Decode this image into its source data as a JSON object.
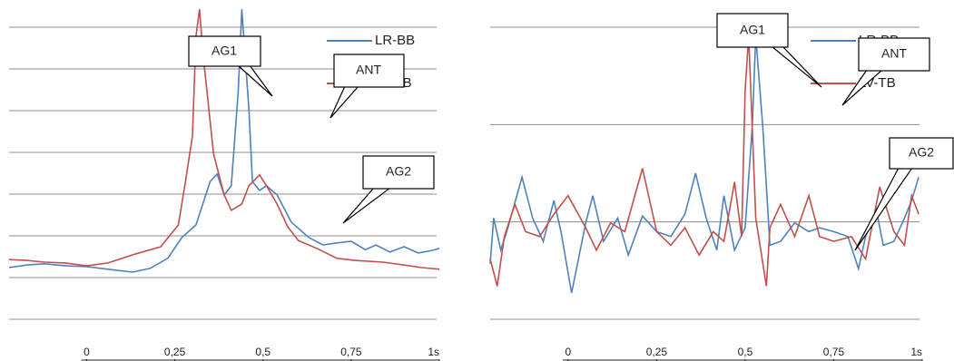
{
  "chart_data": [
    {
      "type": "line",
      "xlim": [
        -0.22,
        1
      ],
      "ylim": [
        0,
        7
      ],
      "yticks": [
        0,
        1,
        2,
        3,
        4,
        5,
        6,
        7
      ],
      "grid": true,
      "xticks": [
        0,
        {
          "value": 0.25,
          "label": "0,25"
        },
        {
          "value": 0.5,
          "label": "0,5"
        },
        {
          "value": 0.75,
          "label": "0,75"
        },
        {
          "value": 1,
          "label": "1s"
        }
      ],
      "annotations": [
        "AG1",
        "ANT",
        "AG2"
      ],
      "series": [
        {
          "name": "LR-BB",
          "color": "#4f81bd",
          "x": [
            -0.22,
            -0.17,
            -0.12,
            -0.06,
            0,
            0.06,
            0.13,
            0.18,
            0.23,
            0.27,
            0.31,
            0.35,
            0.37,
            0.39,
            0.41,
            0.43,
            0.44,
            0.46,
            0.47,
            0.49,
            0.51,
            0.54,
            0.58,
            0.63,
            0.67,
            0.71,
            0.75,
            0.79,
            0.82,
            0.86,
            0.9,
            0.94,
            0.98,
            1.0
          ],
          "values": [
            1.24,
            1.3,
            1.33,
            1.28,
            1.26,
            1.2,
            1.13,
            1.22,
            1.46,
            1.96,
            2.26,
            3.3,
            3.48,
            2.98,
            3.2,
            5.48,
            7.43,
            5.04,
            3.3,
            3.09,
            3.2,
            2.98,
            2.33,
            1.96,
            1.78,
            1.83,
            1.87,
            1.67,
            1.78,
            1.61,
            1.74,
            1.59,
            1.65,
            1.7
          ]
        },
        {
          "name": "LV-TB",
          "color": "#c0504d",
          "x": [
            -0.22,
            -0.17,
            -0.12,
            -0.06,
            0,
            0.06,
            0.14,
            0.21,
            0.26,
            0.28,
            0.3,
            0.31,
            0.32,
            0.33,
            0.36,
            0.39,
            0.41,
            0.44,
            0.46,
            0.49,
            0.51,
            0.54,
            0.57,
            0.6,
            0.66,
            0.71,
            0.76,
            0.84,
            0.9,
            0.95,
            1.0
          ],
          "values": [
            1.43,
            1.41,
            1.37,
            1.35,
            1.28,
            1.35,
            1.57,
            1.74,
            2.26,
            3.3,
            4.39,
            6.78,
            7.43,
            6.35,
            3.96,
            2.98,
            2.61,
            2.76,
            3.2,
            3.46,
            3.2,
            2.76,
            2.22,
            1.89,
            1.67,
            1.46,
            1.41,
            1.37,
            1.3,
            1.24,
            1.2
          ]
        }
      ]
    },
    {
      "type": "line",
      "xlim": [
        -0.22,
        1
      ],
      "ylim": [
        -1,
        2
      ],
      "yticks": [
        -1,
        0,
        1,
        2
      ],
      "grid": true,
      "xticks": [
        0,
        {
          "value": 0.25,
          "label": "0,25"
        },
        {
          "value": 0.5,
          "label": "0,5"
        },
        {
          "value": 0.75,
          "label": "0,75"
        },
        {
          "value": 1,
          "label": "1s"
        }
      ],
      "annotations": [
        "AG1",
        "ANT",
        "AG2"
      ],
      "series": [
        {
          "name": "LR-BB",
          "color": "#4f81bd",
          "x": [
            -0.22,
            -0.21,
            -0.19,
            -0.17,
            -0.13,
            -0.1,
            -0.07,
            -0.04,
            -0.02,
            0.01,
            0.05,
            0.07,
            0.1,
            0.14,
            0.17,
            0.21,
            0.25,
            0.29,
            0.33,
            0.36,
            0.39,
            0.42,
            0.44,
            0.47,
            0.5,
            0.52,
            0.53,
            0.55,
            0.57,
            0.6,
            0.64,
            0.68,
            0.71,
            0.75,
            0.79,
            0.82,
            0.84,
            0.87,
            0.89,
            0.92,
            0.95,
            0.97,
            0.99
          ],
          "values": [
            -0.43,
            0.04,
            -0.29,
            -0.06,
            0.46,
            0.04,
            -0.2,
            0.22,
            -0.1,
            -0.73,
            -0.01,
            0.27,
            -0.2,
            0.04,
            -0.34,
            0.06,
            -0.1,
            -0.15,
            0.08,
            0.5,
            0.04,
            -0.29,
            0.27,
            -0.29,
            -0.06,
            0.97,
            1.91,
            0.97,
            -0.24,
            -0.2,
            -0.01,
            -0.1,
            -0.06,
            -0.1,
            -0.15,
            -0.48,
            -0.15,
            0.13,
            -0.24,
            -0.2,
            0.04,
            0.22,
            0.46
          ]
        },
        {
          "name": "LV-TB",
          "color": "#c0504d",
          "x": [
            -0.22,
            -0.2,
            -0.18,
            -0.15,
            -0.12,
            -0.08,
            -0.04,
            0,
            0.05,
            0.08,
            0.12,
            0.16,
            0.21,
            0.25,
            0.29,
            0.33,
            0.37,
            0.41,
            0.44,
            0.47,
            0.49,
            0.5,
            0.51,
            0.53,
            0.56,
            0.57,
            0.6,
            0.64,
            0.68,
            0.71,
            0.75,
            0.8,
            0.84,
            0.88,
            0.92,
            0.95,
            0.97,
            0.99
          ],
          "values": [
            -0.38,
            -0.66,
            -0.15,
            0.18,
            -0.1,
            -0.15,
            0.08,
            0.27,
            -0.06,
            -0.29,
            -0.01,
            -0.1,
            0.55,
            -0.1,
            -0.24,
            -0.06,
            -0.34,
            -0.1,
            -0.2,
            0.41,
            -0.15,
            1.35,
            1.91,
            0.04,
            -0.66,
            -0.06,
            0.18,
            -0.15,
            0.27,
            -0.15,
            -0.2,
            -0.15,
            -0.38,
            0.36,
            -0.1,
            -0.24,
            0.27,
            0.08
          ]
        }
      ]
    }
  ]
}
